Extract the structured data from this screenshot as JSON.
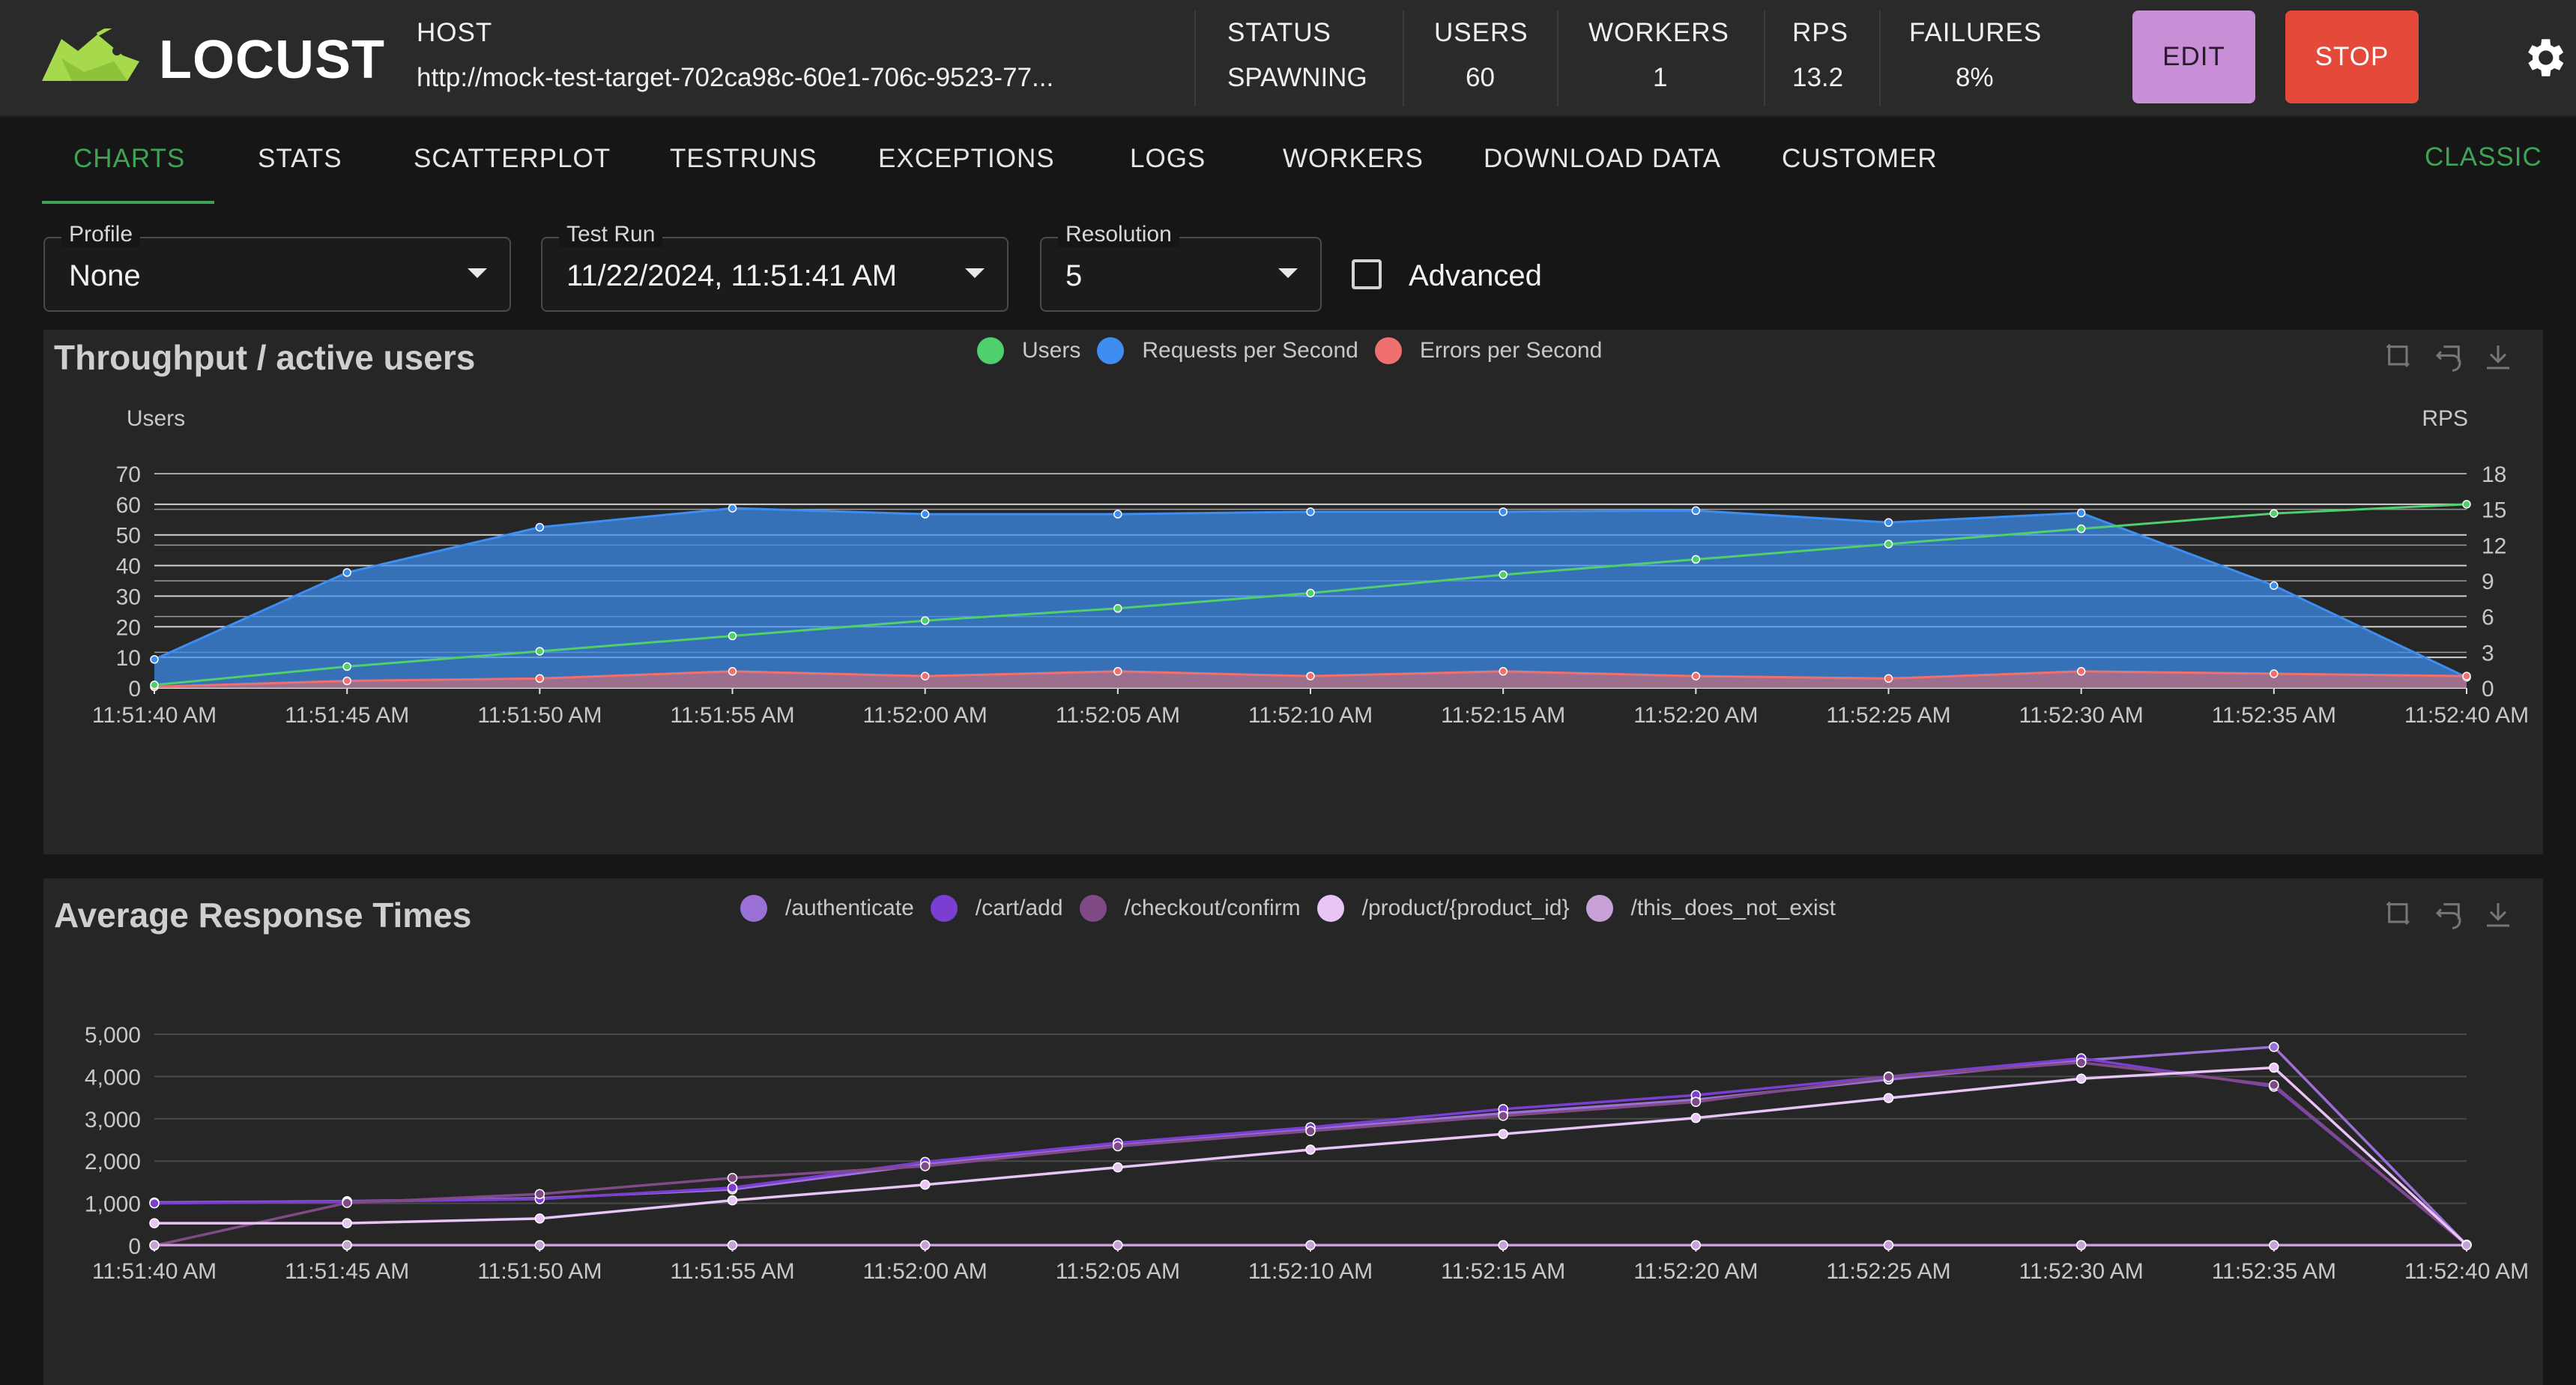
{
  "app": {
    "logo_text": "LOCUST",
    "host_label": "HOST",
    "host_value": "http://mock-test-target-702ca98c-60e1-706c-9523-77...",
    "stats": [
      {
        "label": "STATUS",
        "value": "SPAWNING"
      },
      {
        "label": "USERS",
        "value": "60"
      },
      {
        "label": "WORKERS",
        "value": "1"
      },
      {
        "label": "RPS",
        "value": "13.2"
      },
      {
        "label": "FAILURES",
        "value": "8%"
      }
    ],
    "edit_label": "EDIT",
    "stop_label": "STOP",
    "settings_icon": "gear-icon"
  },
  "tabs": {
    "items": [
      "CHARTS",
      "STATS",
      "SCATTERPLOT",
      "TESTRUNS",
      "EXCEPTIONS",
      "LOGS",
      "WORKERS",
      "DOWNLOAD DATA",
      "CUSTOMER"
    ],
    "active": "CHARTS",
    "classic_label": "CLASSIC"
  },
  "filters": {
    "profile": {
      "label": "Profile",
      "value": "None"
    },
    "test_run": {
      "label": "Test Run",
      "value": "11/22/2024, 11:51:41 AM"
    },
    "resolution": {
      "label": "Resolution",
      "value": "5"
    },
    "advanced": {
      "label": "Advanced",
      "checked": false
    }
  },
  "colors": {
    "users": "#4fcf6e",
    "rps": "#3d8ef0",
    "errors": "#f07070",
    "authenticate": "#9a6fd6",
    "cart_add": "#7a3fd2",
    "checkout_confirm": "#804a86",
    "product": "#e9c4f6",
    "not_exist": "#c8a2d6",
    "accent": "#3fa356"
  },
  "chart_data": [
    {
      "type": "area",
      "title": "Throughput / active users",
      "ylabel": "Users",
      "y2label": "RPS",
      "x": [
        "11:51:40 AM",
        "11:51:45 AM",
        "11:51:50 AM",
        "11:51:55 AM",
        "11:52:00 AM",
        "11:52:05 AM",
        "11:52:10 AM",
        "11:52:15 AM",
        "11:52:20 AM",
        "11:52:25 AM",
        "11:52:30 AM",
        "11:52:35 AM",
        "11:52:40 AM"
      ],
      "ylim": [
        0,
        70
      ],
      "y_ticks": [
        "0",
        "10",
        "20",
        "30",
        "40",
        "50",
        "60",
        "70"
      ],
      "y2lim": [
        0,
        18
      ],
      "y2_ticks": [
        "0",
        "3",
        "6",
        "9",
        "12",
        "15",
        "18"
      ],
      "legend": [
        "Users",
        "Requests per Second",
        "Errors per Second"
      ],
      "legend_position": "top-center",
      "grid": true,
      "series": [
        {
          "name": "Users",
          "axis": "left",
          "style": "line",
          "values": [
            1,
            7,
            12,
            17,
            22,
            26,
            31,
            37,
            42,
            47,
            52,
            57,
            60
          ]
        },
        {
          "name": "Requests per Second",
          "axis": "right",
          "style": "area",
          "values": [
            2.4,
            9.7,
            13.5,
            15.1,
            14.6,
            14.6,
            14.8,
            14.8,
            14.9,
            13.9,
            14.7,
            8.6,
            0.9
          ]
        },
        {
          "name": "Errors per Second",
          "axis": "right",
          "style": "area",
          "values": [
            0.1,
            0.6,
            0.8,
            1.4,
            1.0,
            1.4,
            1.0,
            1.4,
            1.0,
            0.8,
            1.4,
            1.2,
            1.0
          ]
        }
      ]
    },
    {
      "type": "line",
      "title": "Average Response Times",
      "x": [
        "11:51:40 AM",
        "11:51:45 AM",
        "11:51:50 AM",
        "11:51:55 AM",
        "11:52:00 AM",
        "11:52:05 AM",
        "11:52:10 AM",
        "11:52:15 AM",
        "11:52:20 AM",
        "11:52:25 AM",
        "11:52:30 AM",
        "11:52:35 AM",
        "11:52:40 AM"
      ],
      "ylim": [
        0,
        5000
      ],
      "y_ticks": [
        "0",
        "1,000",
        "2,000",
        "3,000",
        "4,000",
        "5,000"
      ],
      "legend": [
        "/authenticate",
        "/cart/add",
        "/checkout/confirm",
        "/product/{product_id}",
        "/this_does_not_exist"
      ],
      "legend_position": "top-center",
      "grid": true,
      "series": [
        {
          "name": "/authenticate",
          "values": [
            1020,
            1050,
            1120,
            1330,
            1920,
            2380,
            2750,
            3130,
            3450,
            3930,
            4380,
            4700,
            20
          ]
        },
        {
          "name": "/cart/add",
          "values": [
            1000,
            1040,
            1100,
            1370,
            1980,
            2430,
            2800,
            3230,
            3560,
            4000,
            4430,
            3760,
            20
          ]
        },
        {
          "name": "/checkout/confirm",
          "values": [
            0,
            1010,
            1220,
            1600,
            1880,
            2350,
            2710,
            3070,
            3400,
            3990,
            4330,
            3800,
            20
          ]
        },
        {
          "name": "/product/{product_id}",
          "values": [
            530,
            530,
            640,
            1070,
            1440,
            1850,
            2270,
            2640,
            3020,
            3490,
            3950,
            4210,
            20
          ]
        },
        {
          "name": "/this_does_not_exist",
          "values": [
            10,
            10,
            10,
            10,
            10,
            10,
            10,
            10,
            10,
            10,
            10,
            10,
            10
          ]
        }
      ]
    }
  ]
}
